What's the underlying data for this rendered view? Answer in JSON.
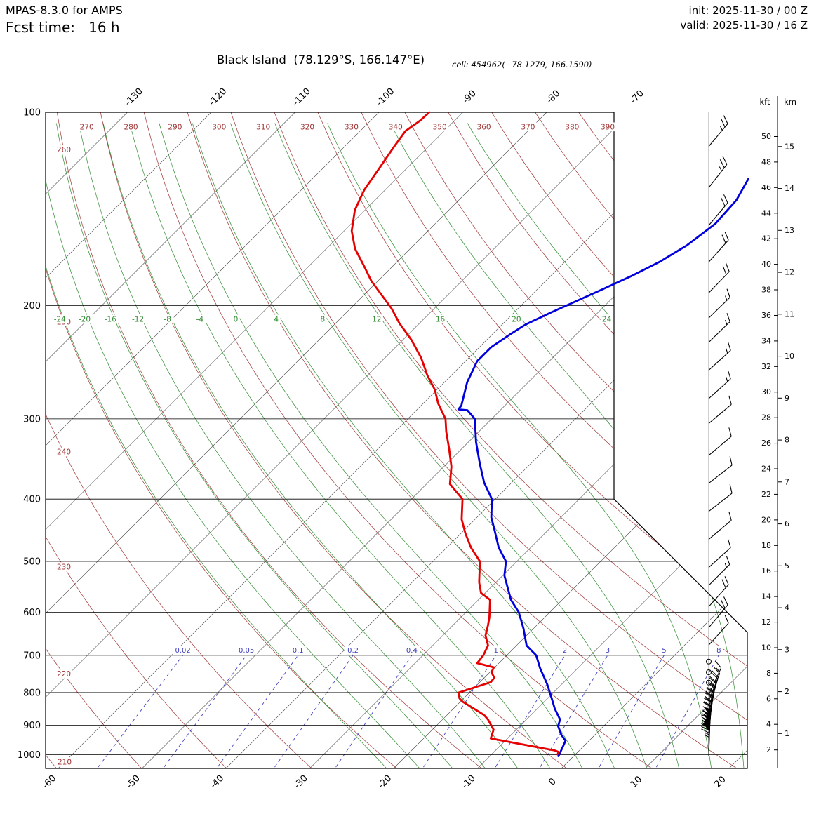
{
  "header": {
    "model": "MPAS-8.3.0 for AMPS",
    "fcst_line": "Fcst time:   16 h",
    "init": "init: 2025-11-30 / 00 Z",
    "valid": "valid: 2025-11-30 / 16 Z"
  },
  "title": {
    "main": "Black Island  (78.129°S, 166.147°E)",
    "cell_label": "cell:",
    "cell_value": "454962(−78.1279, 166.1590)"
  },
  "chart_data": {
    "type": "skewt-logp",
    "pressure_unit": "hPa",
    "temp_unit": "°C",
    "pressure_range": [
      100,
      1050
    ],
    "pressure_ticks": [
      100,
      200,
      300,
      400,
      500,
      600,
      700,
      800,
      900,
      1000
    ],
    "temp_bottom_ticks": [
      -60,
      -50,
      -40,
      -30,
      -20,
      -10,
      0,
      10,
      20
    ],
    "temp_top_ticks": [
      -130,
      -120,
      -110,
      -100,
      -90,
      -80,
      -70
    ],
    "skew_deg": 45,
    "dry_adiabats_K": [
      210,
      220,
      230,
      240,
      250,
      260,
      270,
      280,
      290,
      300,
      310,
      320,
      330,
      340,
      350,
      360,
      370,
      380,
      390
    ],
    "moist_adiabat_labels_C": [
      -24,
      -20,
      -16,
      -12,
      -8,
      -4,
      0,
      4,
      8,
      12,
      16,
      20,
      24
    ],
    "mixing_ratio_g_kg": [
      0.02,
      0.05,
      0.1,
      0.2,
      0.4,
      1,
      2,
      3,
      5,
      8
    ],
    "height_scale": {
      "kft_label": "kft",
      "km_label": "km",
      "kft_values": [
        2,
        4,
        6,
        8,
        10,
        12,
        14,
        16,
        18,
        20,
        22,
        24,
        26,
        28,
        30,
        32,
        34,
        36,
        38,
        40,
        42,
        44,
        46,
        48,
        50
      ],
      "km_values": [
        1,
        2,
        3,
        4,
        5,
        6,
        7,
        8,
        9,
        10,
        11,
        12,
        13,
        14,
        15
      ]
    },
    "temperature_profile": {
      "name": "temperature",
      "color": "#0000dd",
      "points": [
        [
          1005,
          -1.8
        ],
        [
          967,
          -2.5
        ],
        [
          951,
          -2.8
        ],
        [
          931,
          -4.0
        ],
        [
          903,
          -5.4
        ],
        [
          881,
          -6.0
        ],
        [
          848,
          -7.9
        ],
        [
          817,
          -9.5
        ],
        [
          777,
          -11.7
        ],
        [
          733,
          -14.5
        ],
        [
          700,
          -16.5
        ],
        [
          676,
          -18.8
        ],
        [
          636,
          -21.2
        ],
        [
          600,
          -23.7
        ],
        [
          574,
          -26.1
        ],
        [
          545,
          -28.3
        ],
        [
          526,
          -29.8
        ],
        [
          500,
          -31.3
        ],
        [
          476,
          -33.8
        ],
        [
          449,
          -36.2
        ],
        [
          427,
          -38.3
        ],
        [
          400,
          -40.4
        ],
        [
          377,
          -43.3
        ],
        [
          352,
          -46.1
        ],
        [
          326,
          -49.1
        ],
        [
          300,
          -52.0
        ],
        [
          291,
          -53.9
        ],
        [
          290,
          -55.1
        ],
        [
          286,
          -55.2
        ],
        [
          263,
          -57.3
        ],
        [
          244,
          -58.6
        ],
        [
          232,
          -58.6
        ],
        [
          222,
          -57.9
        ],
        [
          214,
          -57.2
        ],
        [
          205,
          -55.6
        ],
        [
          197,
          -54.0
        ],
        [
          188,
          -52.1
        ],
        [
          180,
          -50.4
        ],
        [
          171,
          -48.7
        ],
        [
          161,
          -47.4
        ],
        [
          149,
          -46.6
        ],
        [
          137,
          -46.9
        ],
        [
          127,
          -48.0
        ]
      ]
    },
    "dewpoint_profile": {
      "name": "dewpoint",
      "color": "#e60000",
      "points": [
        [
          999,
          -2.1
        ],
        [
          990,
          -2.3
        ],
        [
          984,
          -3.0
        ],
        [
          981,
          -3.7
        ],
        [
          943,
          -12.0
        ],
        [
          914,
          -12.7
        ],
        [
          881,
          -14.6
        ],
        [
          867,
          -15.6
        ],
        [
          827,
          -19.7
        ],
        [
          817,
          -20.5
        ],
        [
          800,
          -21.3
        ],
        [
          771,
          -18.7
        ],
        [
          759,
          -18.8
        ],
        [
          744,
          -19.8
        ],
        [
          731,
          -20.1
        ],
        [
          720,
          -22.6
        ],
        [
          700,
          -22.8
        ],
        [
          676,
          -23.4
        ],
        [
          652,
          -24.9
        ],
        [
          629,
          -25.8
        ],
        [
          611,
          -26.6
        ],
        [
          574,
          -28.6
        ],
        [
          560,
          -30.5
        ],
        [
          539,
          -32.0
        ],
        [
          500,
          -34.4
        ],
        [
          476,
          -37.1
        ],
        [
          452,
          -39.5
        ],
        [
          430,
          -41.6
        ],
        [
          400,
          -43.9
        ],
        [
          379,
          -47.2
        ],
        [
          356,
          -49.1
        ],
        [
          334,
          -51.5
        ],
        [
          314,
          -53.9
        ],
        [
          300,
          -55.5
        ],
        [
          284,
          -58.2
        ],
        [
          270,
          -60.3
        ],
        [
          257,
          -62.8
        ],
        [
          241,
          -65.7
        ],
        [
          226,
          -69.0
        ],
        [
          213,
          -72.4
        ],
        [
          202,
          -75.1
        ],
        [
          183,
          -80.8
        ],
        [
          174,
          -83.3
        ],
        [
          163,
          -86.6
        ],
        [
          153,
          -89.1
        ],
        [
          142,
          -91.2
        ],
        [
          132,
          -92.5
        ],
        [
          122,
          -93.3
        ],
        [
          113,
          -94.1
        ],
        [
          107,
          -94.6
        ],
        [
          103,
          -94.1
        ],
        [
          100,
          -94.0
        ]
      ]
    },
    "wind_barbs": [
      {
        "p": 113,
        "spd": 25,
        "dir": 40
      },
      {
        "p": 131,
        "spd": 25,
        "dir": 38
      },
      {
        "p": 150,
        "spd": 20,
        "dir": 40
      },
      {
        "p": 171,
        "spd": 20,
        "dir": 42
      },
      {
        "p": 191,
        "spd": 20,
        "dir": 44
      },
      {
        "p": 209,
        "spd": 15,
        "dir": 46
      },
      {
        "p": 228,
        "spd": 15,
        "dir": 46
      },
      {
        "p": 252,
        "spd": 15,
        "dir": 48
      },
      {
        "p": 279,
        "spd": 15,
        "dir": 48
      },
      {
        "p": 305,
        "spd": 10,
        "dir": 50
      },
      {
        "p": 342,
        "spd": 10,
        "dir": 50
      },
      {
        "p": 378,
        "spd": 10,
        "dir": 52
      },
      {
        "p": 418,
        "spd": 10,
        "dir": 52
      },
      {
        "p": 462,
        "spd": 10,
        "dir": 50
      },
      {
        "p": 511,
        "spd": 10,
        "dir": 48
      },
      {
        "p": 545,
        "spd": 15,
        "dir": 45
      },
      {
        "p": 588,
        "spd": 20,
        "dir": 42
      },
      {
        "p": 634,
        "spd": 20,
        "dir": 40
      },
      {
        "p": 675,
        "spd": 10,
        "dir": 42
      },
      {
        "p": 716,
        "spd": 0,
        "dir": 0
      },
      {
        "p": 744,
        "spd": 0,
        "dir": 0
      },
      {
        "p": 772,
        "spd": 0,
        "dir": 0
      },
      {
        "p": 806,
        "spd": 15,
        "dir": 25
      },
      {
        "p": 824,
        "spd": 20,
        "dir": 22
      },
      {
        "p": 842,
        "spd": 25,
        "dir": 18
      },
      {
        "p": 858,
        "spd": 25,
        "dir": 15
      },
      {
        "p": 874,
        "spd": 30,
        "dir": 12
      },
      {
        "p": 890,
        "spd": 30,
        "dir": 10
      },
      {
        "p": 906,
        "spd": 35,
        "dir": 8
      },
      {
        "p": 922,
        "spd": 40,
        "dir": 6
      },
      {
        "p": 936,
        "spd": 45,
        "dir": 5
      },
      {
        "p": 948,
        "spd": 50,
        "dir": 4
      },
      {
        "p": 960,
        "spd": 55,
        "dir": 3
      },
      {
        "p": 972,
        "spd": 60,
        "dir": 3
      },
      {
        "p": 984,
        "spd": 60,
        "dir": 2
      },
      {
        "p": 994,
        "spd": 65,
        "dir": 2
      },
      {
        "p": 1003,
        "spd": 65,
        "dir": 2
      }
    ],
    "colors": {
      "isotherm": "#3a3a3a",
      "dry_adiabat": "#a03232",
      "moist_adiabat": "#2e8b2e",
      "mixing_ratio": "#4040c0",
      "pressure_line": "#000000",
      "barb": "#000000"
    }
  }
}
